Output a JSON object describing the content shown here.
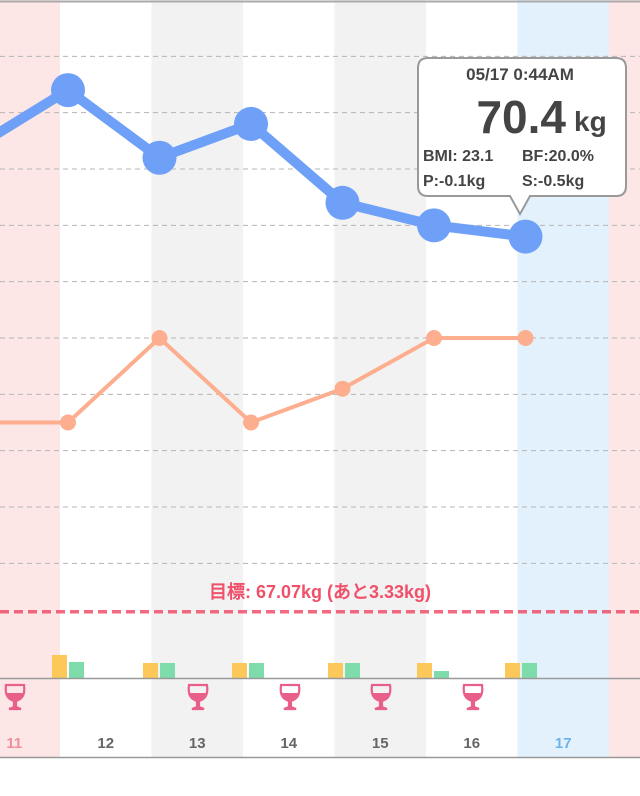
{
  "chart_data": {
    "type": "line",
    "categories": [
      "11",
      "12",
      "13",
      "14",
      "15",
      "16",
      "17",
      null
    ],
    "label_colors": [
      "#f08f9a",
      "#666666",
      "#666666",
      "#666666",
      "#666666",
      "#666666",
      "#6cb4e8",
      "#666666"
    ],
    "column_colors": [
      "#fde6e6",
      "#ffffff",
      "#f2f2f2",
      "#ffffff",
      "#f2f2f2",
      "#ffffff",
      "#e2f1fc",
      "#fde6e6"
    ],
    "series": [
      {
        "color": "#6ea0f8",
        "values": [
          71.2,
          71.7,
          71.1,
          71.4,
          70.7,
          70.5,
          70.4,
          null
        ]
      },
      {
        "color": "#fcae8e",
        "axis": "y2",
        "values": [
          19.5,
          19.5,
          20.0,
          19.5,
          19.7,
          20.0,
          20.0,
          null
        ]
      }
    ],
    "ylim": [
      66.5,
      72.5
    ],
    "yticks": [
      67.5,
      68,
      68.5,
      69,
      69.5,
      70,
      70.5,
      71,
      71.5,
      72
    ],
    "y2lim": [
      18,
      22
    ],
    "grid": true,
    "goal": {
      "value": 67.07,
      "label": "目標: 67.07kg (あと3.33kg)",
      "color": "#f0506a"
    },
    "tooltip": {
      "date": "05/17 0:44AM",
      "unit": "kg",
      "bmi": "BMI: 23.1",
      "bf": "BF:20.0%",
      "p": "P:-0.1kg",
      "s": "S:-0.5kg"
    }
  }
}
